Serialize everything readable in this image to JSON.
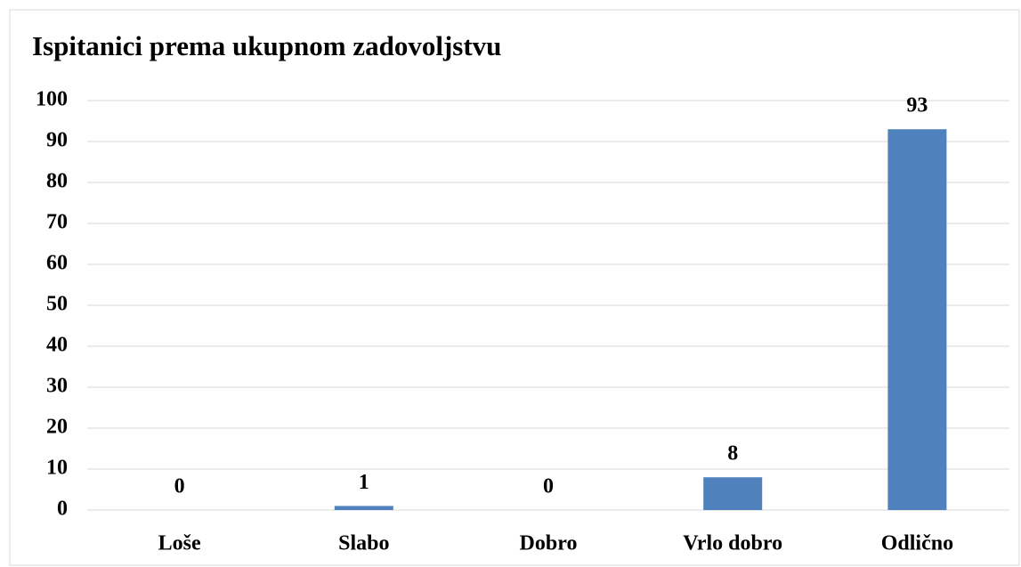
{
  "chart_data": {
    "type": "bar",
    "title": "Ispitanici prema ukupnom zadovoljstvu",
    "categories": [
      "Loše",
      "Slabo",
      "Dobro",
      "Vrlo dobro",
      "Odlično"
    ],
    "values": [
      0,
      1,
      0,
      8,
      93
    ],
    "color": "#4f81bd",
    "ylim": [
      0,
      100
    ],
    "yticks": [
      0,
      10,
      20,
      30,
      40,
      50,
      60,
      70,
      80,
      90,
      100
    ],
    "grid": true
  }
}
